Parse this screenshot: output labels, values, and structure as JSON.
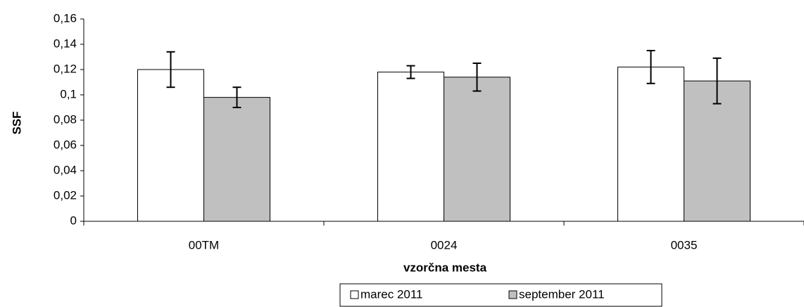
{
  "chart_data": {
    "type": "bar",
    "categories": [
      "00TM",
      "0024",
      "0035"
    ],
    "series": [
      {
        "name": "marec 2011",
        "color": "#ffffff",
        "values": [
          0.12,
          0.118,
          0.122
        ],
        "errors": [
          0.014,
          0.005,
          0.013
        ]
      },
      {
        "name": "september 2011",
        "color": "#c0c0c0",
        "values": [
          0.098,
          0.114,
          0.111
        ],
        "errors": [
          0.008,
          0.011,
          0.018
        ]
      }
    ],
    "ylim": [
      0,
      0.16
    ],
    "yticks": [
      0,
      {
        "value": 0.02,
        "label": "0,02"
      },
      {
        "value": 0.04,
        "label": "0,04"
      },
      {
        "value": 0.06,
        "label": "0,06"
      },
      {
        "value": 0.08,
        "label": "0,08"
      },
      {
        "value": 0.1,
        "label": "0,1"
      },
      {
        "value": 0.12,
        "label": "0,12"
      },
      {
        "value": 0.14,
        "label": "0,14"
      },
      {
        "value": 0.16,
        "label": "0,16"
      }
    ],
    "y_label": "SSF",
    "x_label": "vzorčna mesta",
    "grid": false
  }
}
